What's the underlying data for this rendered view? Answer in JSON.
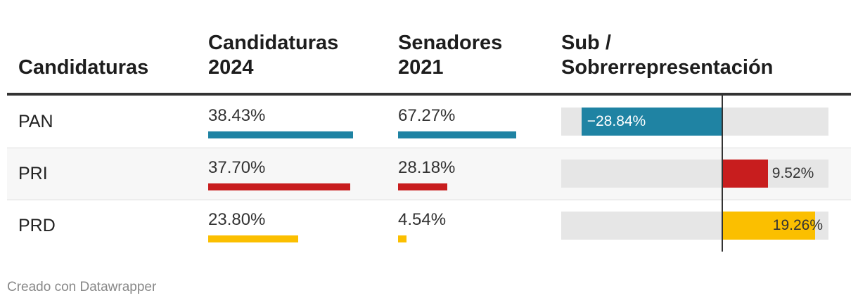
{
  "headers": {
    "party": "Candidaturas",
    "candidaturas_2024": [
      "Candidaturas",
      "2024"
    ],
    "senadores_2021": [
      "Senadores",
      "2021"
    ],
    "representacion": [
      "Sub /",
      "Sobrerrepresentación"
    ]
  },
  "chart_data": {
    "type": "table",
    "columns": [
      "Candidaturas",
      "Candidaturas 2024",
      "Senadores 2021",
      "Sub / Sobrerrepresentación"
    ],
    "rows": [
      {
        "party": "PAN",
        "candidaturas_2024": 38.43,
        "candidaturas_2024_label": "38.43%",
        "senadores_2021": 67.27,
        "senadores_2021_label": "67.27%",
        "diff": -28.84,
        "diff_label": "−28.84%",
        "color": "#1f83a3"
      },
      {
        "party": "PRI",
        "candidaturas_2024": 37.7,
        "candidaturas_2024_label": "37.70%",
        "senadores_2021": 28.18,
        "senadores_2021_label": "28.18%",
        "diff": 9.52,
        "diff_label": "9.52%",
        "color": "#c81d1e"
      },
      {
        "party": "PRD",
        "candidaturas_2024": 23.8,
        "candidaturas_2024_label": "23.80%",
        "senadores_2021": 4.54,
        "senadores_2021_label": "4.54%",
        "diff": 19.26,
        "diff_label": "19.26%",
        "color": "#fbbf00"
      }
    ],
    "bar_max": 70,
    "diff_range": [
      -33,
      22
    ]
  },
  "footer": {
    "credit": "Creado con Datawrapper"
  }
}
